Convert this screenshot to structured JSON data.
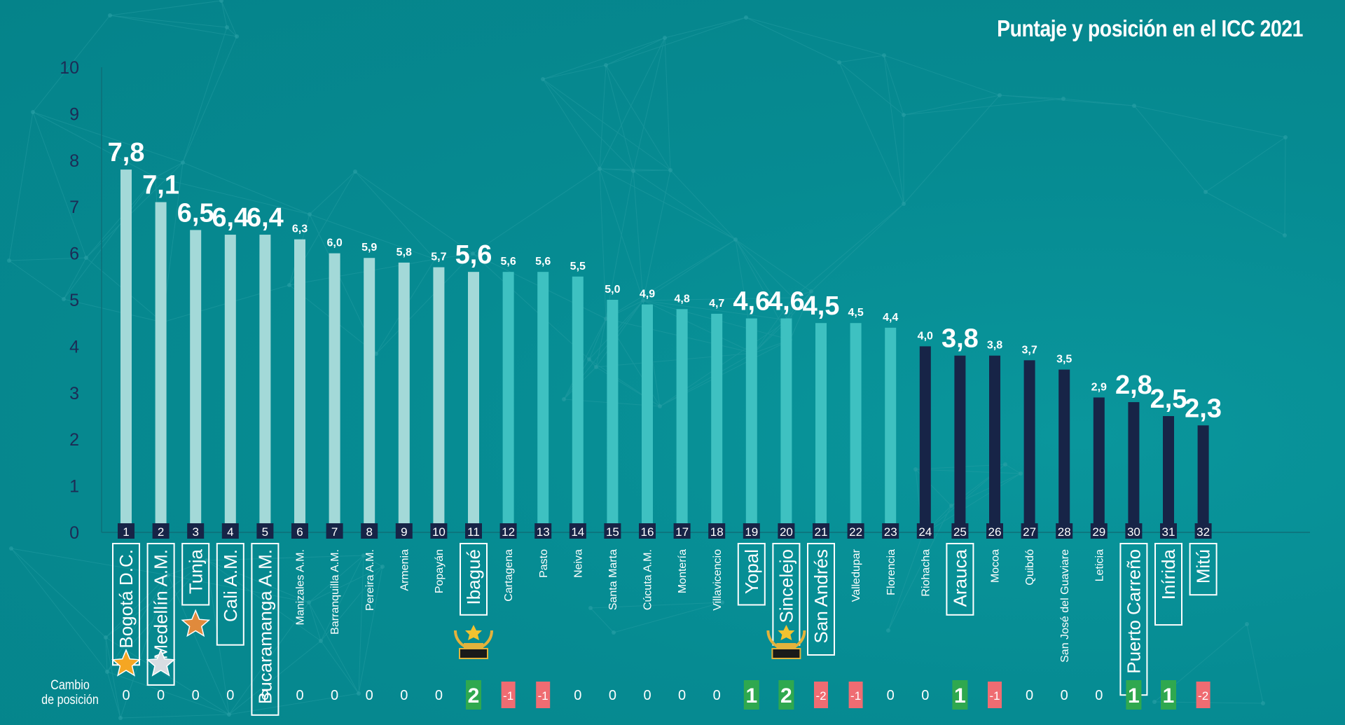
{
  "title": "Puntaje y posición en el ICC 2021",
  "change_label_line1": "Cambio",
  "change_label_line2": "de posición",
  "colors": {
    "background": "#068b92",
    "top_group": "#a3d9d8",
    "mid_group": "#3ec1c1",
    "low_group": "#172447",
    "positive": "#2fa84f",
    "negative": "#ef6c72",
    "axis_text": "#1d2b55"
  },
  "chart_data": {
    "type": "bar",
    "title": "Puntaje y posición en el ICC 2021",
    "ylim": [
      0,
      10
    ],
    "yticks": [
      0,
      1,
      2,
      3,
      4,
      5,
      6,
      7,
      8,
      9,
      10
    ],
    "grid": false,
    "categories": [
      "Bogotá D.C.",
      "Medellín A.M.",
      "Tunja",
      "Cali A.M.",
      "Bucaramanga A.M.",
      "Manizales A.M.",
      "Barranquilla A.M.",
      "Pereira A.M.",
      "Armenia",
      "Popayán",
      "Ibagué",
      "Cartagena",
      "Pasto",
      "Neiva",
      "Santa Marta",
      "Cúcuta A.M.",
      "Montería",
      "Villavicencio",
      "Yopal",
      "Sincelejo",
      "San Andrés",
      "Valledupar",
      "Florencia",
      "Riohacha",
      "Arauca",
      "Mocoa",
      "Quibdó",
      "San José del Guaviare",
      "Leticia",
      "Puerto Carreño",
      "Inírida",
      "Mitú"
    ],
    "values": [
      7.8,
      7.1,
      6.5,
      6.4,
      6.4,
      6.3,
      6.0,
      5.9,
      5.8,
      5.7,
      5.6,
      5.6,
      5.6,
      5.5,
      5.0,
      4.9,
      4.8,
      4.7,
      4.6,
      4.6,
      4.5,
      4.5,
      4.4,
      4.0,
      3.8,
      3.8,
      3.7,
      3.5,
      2.9,
      2.8,
      2.5,
      2.3
    ],
    "value_labels": [
      "7,8",
      "7,1",
      "6,5",
      "6,4",
      "6,4",
      "6,3",
      "6,0",
      "5,9",
      "5,8",
      "5,7",
      "5,6",
      "5,6",
      "5,6",
      "5,5",
      "5,0",
      "4,9",
      "4,8",
      "4,7",
      "4,6",
      "4,6",
      "4,5",
      "4,5",
      "4,4",
      "4,0",
      "3,8",
      "3,8",
      "3,7",
      "3,5",
      "2,9",
      "2,8",
      "2,5",
      "2,3"
    ],
    "positions": [
      "1",
      "2",
      "3",
      "4",
      "5",
      "6",
      "7",
      "8",
      "9",
      "10",
      "11",
      "12",
      "13",
      "14",
      "15",
      "16",
      "17",
      "18",
      "19",
      "20",
      "21",
      "22",
      "23",
      "24",
      "25",
      "26",
      "27",
      "28",
      "29",
      "30",
      "31",
      "32"
    ],
    "position_change": [
      "0",
      "0",
      "0",
      "0",
      "0",
      "0",
      "0",
      "0",
      "0",
      "0",
      "2",
      "-1",
      "-1",
      "0",
      "0",
      "0",
      "0",
      "0",
      "1",
      "2",
      "-2",
      "-1",
      "0",
      "0",
      "1",
      "-1",
      "0",
      "0",
      "0",
      "1",
      "1",
      "-2"
    ],
    "group": [
      "top",
      "top",
      "top",
      "top",
      "top",
      "top",
      "top",
      "top",
      "top",
      "top",
      "top",
      "mid",
      "mid",
      "mid",
      "mid",
      "mid",
      "mid",
      "mid",
      "mid",
      "mid",
      "mid",
      "mid",
      "mid",
      "low",
      "low",
      "low",
      "low",
      "low",
      "low",
      "low",
      "low",
      "low"
    ],
    "emphasized": [
      true,
      true,
      true,
      true,
      true,
      false,
      false,
      false,
      false,
      false,
      true,
      false,
      false,
      false,
      false,
      false,
      false,
      false,
      true,
      true,
      true,
      false,
      false,
      false,
      true,
      false,
      false,
      false,
      false,
      true,
      true,
      true
    ],
    "icons": {
      "0": "gold-star-icon",
      "1": "silver-star-icon",
      "2": "bronze-star-icon",
      "10": "trophy-icon",
      "19": "trophy-icon"
    }
  }
}
